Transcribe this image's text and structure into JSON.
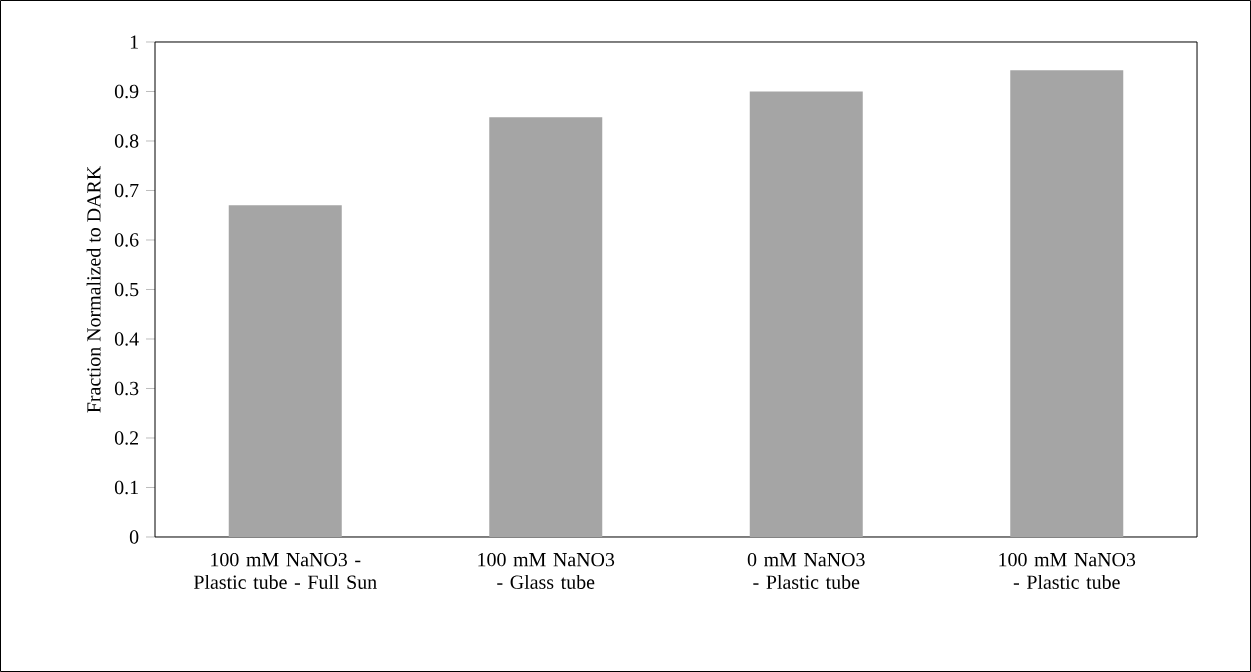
{
  "chart_data": {
    "type": "bar",
    "ylabel": "Fraction Normalized to DARK",
    "categories": [
      "100 mM NaNO3 - Plastic tube - Full Sun",
      "100 mM NaNO3 - Glass tube",
      "0 mM NaNO3 - Plastic tube",
      "100 mM NaNO3 - Plastic tube"
    ],
    "values": [
      0.67,
      0.848,
      0.9,
      0.943
    ],
    "color": "#a5a5a5",
    "ylim": [
      0,
      1
    ],
    "yticks": [
      0,
      0.1,
      0.2,
      0.3,
      0.4,
      0.5,
      0.6,
      0.7,
      0.8,
      0.9,
      1
    ]
  }
}
